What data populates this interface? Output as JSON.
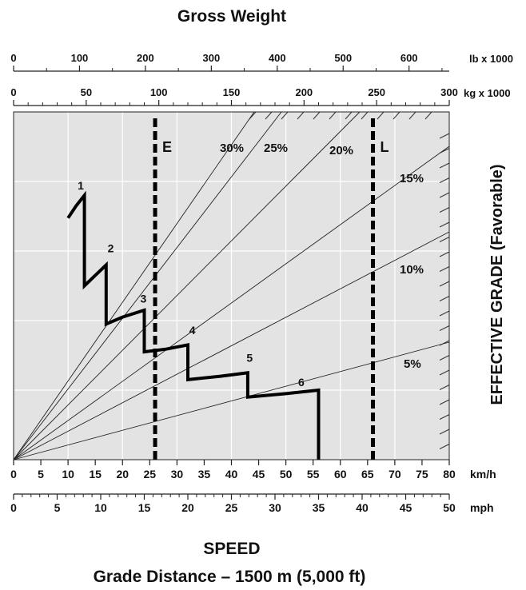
{
  "chart_data": {
    "type": "line",
    "title": "Gross Weight",
    "xlabel": "SPEED",
    "subtitle": "Grade Distance – 1500 m (5,000 ft)",
    "ylabel": "EFFECTIVE GRADE (Favorable)",
    "grid": true,
    "x_axis_kmh": {
      "unit": "km/h",
      "range": [
        0,
        80
      ],
      "ticks": [
        "0",
        "5",
        "10",
        "15",
        "20",
        "25",
        "30",
        "35",
        "40",
        "45",
        "50",
        "55",
        "60",
        "65",
        "70",
        "75",
        "80"
      ]
    },
    "x_axis_mph": {
      "unit": "mph",
      "range": [
        0,
        50
      ],
      "ticks": [
        "0",
        "5",
        "10",
        "15",
        "20",
        "25",
        "30",
        "35",
        "40",
        "45",
        "50"
      ]
    },
    "top_axis_lb": {
      "unit": "lb x 1000",
      "range": [
        0,
        661
      ],
      "ticks": [
        "0",
        "100",
        "200",
        "300",
        "400",
        "500",
        "600"
      ]
    },
    "top_axis_kg": {
      "unit": "kg x 1000",
      "range": [
        0,
        300
      ],
      "ticks": [
        "0",
        "50",
        "100",
        "150",
        "200",
        "250",
        "300"
      ]
    },
    "grade_lines": [
      {
        "label": "30%"
      },
      {
        "label": "25%"
      },
      {
        "label": "20%"
      },
      {
        "label": "15%"
      },
      {
        "label": "10%"
      },
      {
        "label": "5%"
      }
    ],
    "weight_markers": [
      {
        "label": "E",
        "kg": 98
      },
      {
        "label": "L",
        "kg": 248
      }
    ],
    "gear_labels": [
      "1",
      "2",
      "3",
      "4",
      "5",
      "6"
    ],
    "retarder_curve_kmh": [
      10,
      13,
      13,
      17,
      17,
      17,
      24,
      24,
      32,
      32,
      43,
      43,
      56,
      56
    ],
    "retarder_curve_grade_pct": [
      34.5,
      38,
      25.5,
      28,
      20,
      20,
      21,
      15.5,
      16.5,
      11.5,
      13,
      9,
      10,
      0
    ],
    "curve_profile": [
      {
        "gear": "1",
        "kmh": [
          10,
          11.5,
          13,
          13
        ],
        "frac": [
          0.695,
          0.73,
          0.76,
          0.5
        ]
      },
      {
        "gear": "2",
        "kmh": [
          13,
          15,
          17,
          17
        ],
        "frac": [
          0.5,
          0.53,
          0.56,
          0.39
        ]
      },
      {
        "gear": "3",
        "kmh": [
          17,
          20,
          24,
          24
        ],
        "frac": [
          0.39,
          0.41,
          0.43,
          0.31
        ]
      },
      {
        "gear": "4",
        "kmh": [
          24,
          28,
          32,
          32
        ],
        "frac": [
          0.31,
          0.318,
          0.33,
          0.23
        ]
      },
      {
        "gear": "5",
        "kmh": [
          32,
          38,
          43,
          43
        ],
        "frac": [
          0.23,
          0.24,
          0.25,
          0.18
        ]
      },
      {
        "gear": "6",
        "kmh": [
          43,
          50,
          56,
          56
        ],
        "frac": [
          0.18,
          0.19,
          0.2,
          0.0
        ]
      }
    ]
  }
}
